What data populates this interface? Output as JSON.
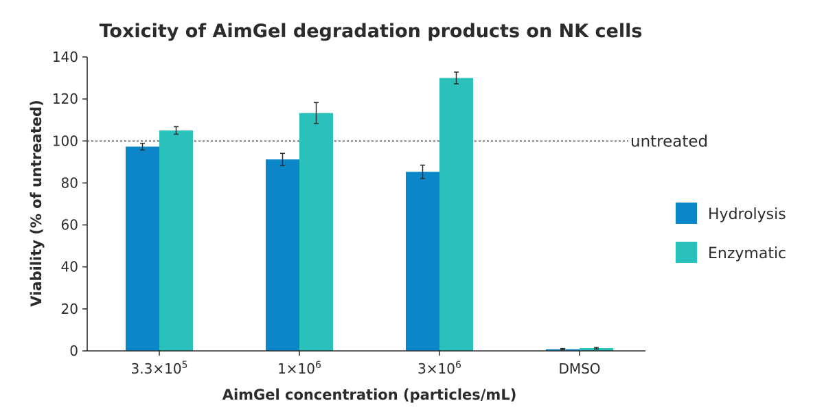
{
  "chart_data": {
    "type": "bar",
    "title": "Toxicity of AimGel degradation products on NK cells",
    "xlabel": "AimGel concentration (particles/mL)",
    "ylabel": "Viability (% of untreated)",
    "categories": [
      {
        "base": "3.3×10",
        "sup": "5"
      },
      {
        "base": "1×10",
        "sup": "6"
      },
      {
        "base": "3×10",
        "sup": "6"
      },
      {
        "base": "DMSO",
        "sup": ""
      }
    ],
    "series": [
      {
        "name": "Hydrolysis",
        "color": "#0a86c9",
        "values": [
          97.3,
          91.2,
          85.3,
          0.8
        ],
        "errors": [
          1.6,
          2.9,
          3.2,
          0.3
        ]
      },
      {
        "name": "Enzymatic",
        "color": "#29c1b9",
        "values": [
          105.0,
          113.3,
          130.0,
          1.3
        ],
        "errors": [
          1.8,
          5.0,
          2.8,
          0.4
        ]
      }
    ],
    "ylim": [
      0,
      140
    ],
    "yticks": [
      0,
      20,
      40,
      60,
      80,
      100,
      120,
      140
    ],
    "reference_line": {
      "value": 100,
      "label": "untreated",
      "style": "dotted"
    },
    "grid": false,
    "legend": "right"
  }
}
